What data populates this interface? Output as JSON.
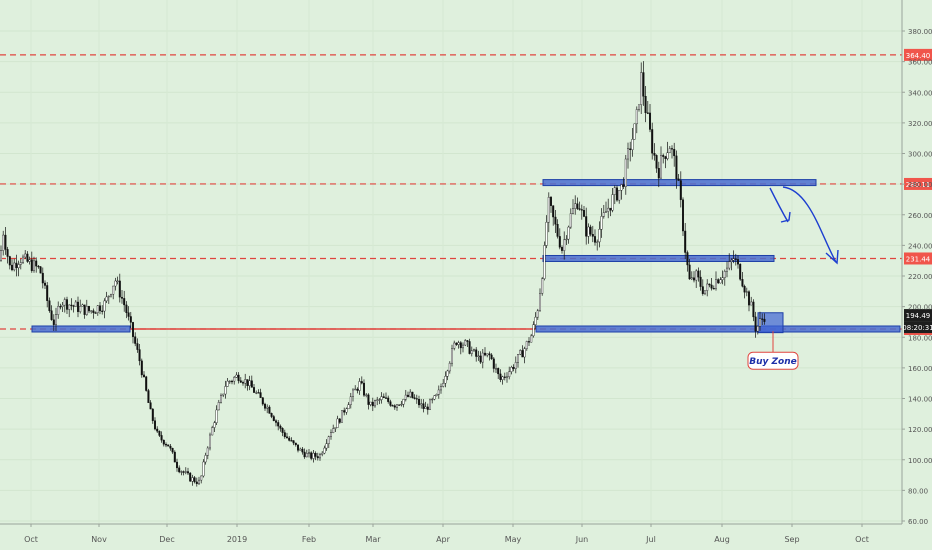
{
  "chart_data": {
    "type": "candlestick",
    "x_tick_labels": [
      "Oct",
      "Nov",
      "Dec",
      "2019",
      "Feb",
      "Mar",
      "Apr",
      "May",
      "Jun",
      "Jul",
      "Aug",
      "Sep",
      "Oct"
    ],
    "y_tick_labels": [
      60,
      80,
      100,
      120,
      140,
      160,
      180,
      200,
      220,
      240,
      260,
      280,
      300,
      320,
      340,
      360,
      380
    ],
    "ylim": [
      52,
      393
    ],
    "price_path": [
      [
        0,
        230
      ],
      [
        3,
        250
      ],
      [
        10,
        225
      ],
      [
        20,
        232
      ],
      [
        30,
        228
      ],
      [
        40,
        224
      ],
      [
        50,
        196
      ],
      [
        55,
        188
      ],
      [
        60,
        204
      ],
      [
        75,
        200
      ],
      [
        90,
        197
      ],
      [
        105,
        202
      ],
      [
        115,
        218
      ],
      [
        125,
        200
      ],
      [
        130,
        188
      ],
      [
        140,
        164
      ],
      [
        150,
        132
      ],
      [
        158,
        115
      ],
      [
        168,
        110
      ],
      [
        178,
        95
      ],
      [
        190,
        88
      ],
      [
        200,
        85
      ],
      [
        206,
        105
      ],
      [
        216,
        130
      ],
      [
        226,
        150
      ],
      [
        238,
        155
      ],
      [
        248,
        150
      ],
      [
        260,
        140
      ],
      [
        270,
        132
      ],
      [
        280,
        120
      ],
      [
        290,
        112
      ],
      [
        300,
        106
      ],
      [
        310,
        102
      ],
      [
        320,
        103
      ],
      [
        330,
        118
      ],
      [
        340,
        127
      ],
      [
        350,
        140
      ],
      [
        360,
        150
      ],
      [
        370,
        135
      ],
      [
        382,
        140
      ],
      [
        395,
        136
      ],
      [
        410,
        142
      ],
      [
        425,
        133
      ],
      [
        438,
        142
      ],
      [
        448,
        162
      ],
      [
        456,
        178
      ],
      [
        466,
        175
      ],
      [
        478,
        166
      ],
      [
        490,
        168
      ],
      [
        500,
        152
      ],
      [
        512,
        160
      ],
      [
        524,
        172
      ],
      [
        532,
        182
      ],
      [
        538,
        200
      ],
      [
        544,
        232
      ],
      [
        548,
        268
      ],
      [
        554,
        255
      ],
      [
        562,
        238
      ],
      [
        570,
        258
      ],
      [
        578,
        270
      ],
      [
        586,
        250
      ],
      [
        596,
        245
      ],
      [
        606,
        262
      ],
      [
        614,
        272
      ],
      [
        622,
        278
      ],
      [
        630,
        305
      ],
      [
        636,
        318
      ],
      [
        641,
        350
      ],
      [
        646,
        328
      ],
      [
        652,
        305
      ],
      [
        658,
        288
      ],
      [
        664,
        300
      ],
      [
        670,
        306
      ],
      [
        676,
        290
      ],
      [
        682,
        260
      ],
      [
        686,
        232
      ],
      [
        690,
        215
      ],
      [
        696,
        220
      ],
      [
        704,
        210
      ],
      [
        712,
        215
      ],
      [
        720,
        220
      ],
      [
        728,
        225
      ],
      [
        734,
        232
      ],
      [
        740,
        222
      ],
      [
        746,
        210
      ],
      [
        752,
        198
      ],
      [
        756,
        185
      ],
      [
        760,
        190
      ],
      [
        765,
        194.49
      ]
    ],
    "horizontal_levels": [
      364.4,
      280.11,
      231.44,
      185.39
    ],
    "level_labels": [
      "364.40",
      "280.11",
      "231.44",
      "185.39"
    ],
    "current_price_label": "194.49",
    "countdown_label": "08:20:31",
    "support_zones": [
      {
        "price": 281.0,
        "from_x": 543,
        "to_x": 816
      },
      {
        "price": 231.44,
        "from_x": 543,
        "to_x": 774
      },
      {
        "price": 185.39,
        "from_x": 32,
        "to_x": 130
      },
      {
        "price": 185.39,
        "from_x": 536,
        "to_x": 900
      }
    ],
    "buy_zone_box": {
      "from_x": 758,
      "to_x": 783,
      "price_low": 183,
      "price_high": 196
    },
    "forecast_arrows": [
      {
        "points": [
          [
            770,
            188
          ],
          [
            780,
            208
          ],
          [
            788,
            222
          ]
        ],
        "arrow": [
          [
            781,
            222
          ],
          [
            789,
            220
          ],
          [
            790,
            212
          ]
        ]
      },
      {
        "points": [
          [
            783,
            187
          ],
          [
            810,
            190
          ],
          [
            822,
            238
          ],
          [
            836,
            262
          ]
        ],
        "arrow": [
          [
            826,
            253
          ],
          [
            837,
            263
          ],
          [
            838,
            250
          ]
        ]
      }
    ],
    "annotation": {
      "text": "Buy Zone",
      "box_price": 165,
      "pointer_price": 184
    }
  }
}
